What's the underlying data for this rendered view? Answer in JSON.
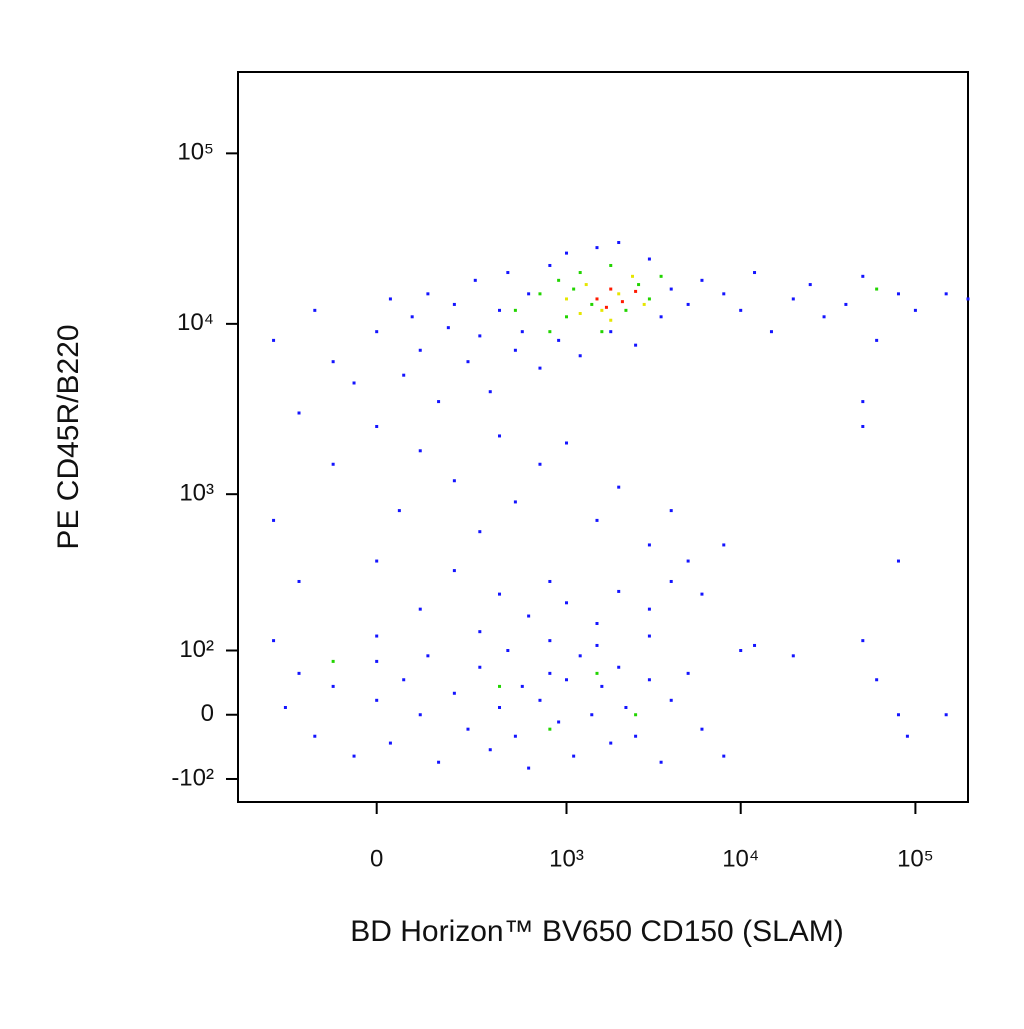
{
  "chart_data": {
    "type": "scatter",
    "xlabel": "BD Horizon™ BV650 CD150 (SLAM)",
    "ylabel": "PE CD45R/B220",
    "xscale": "biexponential",
    "yscale": "biexponential",
    "xlim": [
      -500,
      200000
    ],
    "ylim": [
      -150,
      300000
    ],
    "xticks": [
      0,
      {
        "value": 1000,
        "label": "10³"
      },
      {
        "value": 10000,
        "label": "10⁴"
      },
      {
        "value": 100000,
        "label": "10⁵"
      }
    ],
    "yticks": [
      {
        "value": -100,
        "label": "-10²"
      },
      0,
      {
        "value": 100,
        "label": "10²"
      },
      {
        "value": 1000,
        "label": "10³"
      },
      {
        "value": 10000,
        "label": "10⁴"
      },
      {
        "value": 100000,
        "label": "10⁵"
      }
    ],
    "series": [
      {
        "color": "#1414ff",
        "x": [
          -300,
          -150,
          -100,
          -50,
          0,
          30,
          60,
          80,
          100,
          120,
          150,
          180,
          200,
          250,
          280,
          300,
          350,
          400,
          450,
          500,
          550,
          600,
          700,
          800,
          900,
          1000,
          1200,
          1500,
          1800,
          2000,
          2500,
          3000,
          3500,
          4000,
          5000,
          6000,
          8000,
          10000,
          12000,
          15000,
          20000,
          25000,
          30000,
          40000,
          50000,
          60000,
          80000,
          100000,
          150000,
          200000,
          -200,
          -100,
          0,
          50,
          100,
          200,
          300,
          400,
          500,
          700,
          1000,
          1500,
          2000,
          3000,
          4000,
          5000,
          50000,
          50000,
          8000,
          6000,
          -300,
          -200,
          0,
          100,
          200,
          400,
          600,
          800,
          1000,
          1500,
          2000,
          3000,
          4000,
          80000,
          10000,
          -250,
          -200,
          -150,
          -100,
          -50,
          0,
          0,
          30,
          60,
          100,
          120,
          150,
          200,
          250,
          300,
          350,
          400,
          450,
          500,
          550,
          600,
          700,
          800,
          900,
          1000,
          1100,
          1200,
          1400,
          1600,
          1800,
          2000,
          2200,
          2500,
          3000,
          3500,
          4000,
          5000,
          6000,
          8000,
          -300,
          0,
          300,
          800,
          1500,
          3000,
          50000,
          60000,
          80000,
          90000,
          150000,
          20000,
          12000
        ],
        "values": [
          8000,
          12000,
          6000,
          4500,
          9000,
          14000,
          5000,
          11000,
          7000,
          15000,
          3500,
          9500,
          13000,
          6000,
          18000,
          8500,
          4000,
          12000,
          20000,
          7000,
          9000,
          15000,
          5500,
          22000,
          8000,
          26000,
          6500,
          28000,
          9000,
          30000,
          7500,
          24000,
          11000,
          16000,
          13000,
          18000,
          15000,
          12000,
          20000,
          9000,
          14000,
          17000,
          11000,
          13000,
          19000,
          8000,
          15000,
          12000,
          15000,
          14000,
          3000,
          1500,
          2500,
          800,
          1800,
          1200,
          600,
          2200,
          900,
          1500,
          2000,
          700,
          1100,
          500,
          800,
          400,
          3500,
          2500,
          500,
          250,
          700,
          300,
          400,
          200,
          350,
          250,
          180,
          300,
          220,
          160,
          260,
          200,
          300,
          400,
          100,
          10,
          60,
          -30,
          40,
          -60,
          20,
          80,
          -40,
          50,
          0,
          90,
          -70,
          30,
          -20,
          70,
          -50,
          10,
          100,
          -30,
          40,
          -80,
          20,
          60,
          -10,
          50,
          -60,
          90,
          0,
          40,
          -40,
          70,
          10,
          -30,
          50,
          -70,
          20,
          60,
          -20,
          -60,
          120,
          130,
          140,
          120,
          110,
          130,
          120,
          50,
          0,
          -30,
          0,
          90,
          110
        ]
      },
      {
        "color": "#22d400",
        "x": [
          500,
          700,
          900,
          1000,
          1200,
          1400,
          1600,
          1800,
          2200,
          2600,
          3000,
          3500,
          800,
          1100,
          400,
          800,
          1500,
          2500,
          -100,
          60000
        ],
        "values": [
          12000,
          15000,
          18000,
          11000,
          20000,
          13000,
          9000,
          22000,
          12000,
          17000,
          14000,
          19000,
          9000,
          16000,
          40,
          -20,
          60,
          0,
          80,
          16000
        ]
      },
      {
        "color": "#e6e600",
        "x": [
          1000,
          1300,
          1600,
          2000,
          2400,
          2800,
          1800,
          1200
        ],
        "values": [
          14000,
          17000,
          12000,
          15000,
          19000,
          13000,
          10500,
          11500
        ]
      },
      {
        "color": "#ff1a00",
        "x": [
          1500,
          1800,
          2100,
          2500,
          1700
        ],
        "values": [
          14000,
          16000,
          13500,
          15500,
          12500
        ]
      }
    ]
  }
}
